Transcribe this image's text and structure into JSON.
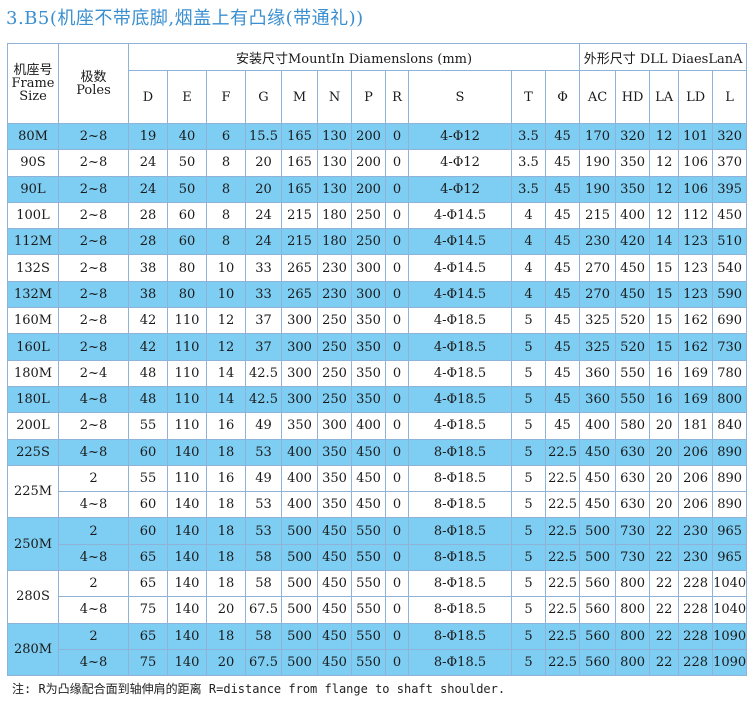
{
  "title": "3.B5(机座不带底脚,烟盖上有凸缘(带通礼))",
  "header": {
    "frame_cn": "机座号",
    "frame_en": "Frame",
    "frame_en2": "Size",
    "poles_cn": "极数",
    "poles_en": "Poles",
    "mount_group": "安装尺寸MountIn Diamenslons (mm)",
    "outline_group": "外形尺寸 DLL DiaesLanA",
    "columns": [
      "D",
      "E",
      "F",
      "G",
      "M",
      "N",
      "P",
      "R",
      "S",
      "T",
      "Φ",
      "AC",
      "HD",
      "LA",
      "LD",
      "L"
    ]
  },
  "rows": [
    {
      "frame": "80M",
      "poles": "2~8",
      "cells": [
        "19",
        "40",
        "6",
        "15.5",
        "165",
        "130",
        "200",
        "0",
        "4-Φ12",
        "3.5",
        "45",
        "170",
        "320",
        "12",
        "101",
        "320"
      ]
    },
    {
      "frame": "90S",
      "poles": "2~8",
      "cells": [
        "24",
        "50",
        "8",
        "20",
        "165",
        "130",
        "200",
        "0",
        "4-Φ12",
        "3.5",
        "45",
        "190",
        "350",
        "12",
        "106",
        "370"
      ]
    },
    {
      "frame": "90L",
      "poles": "2~8",
      "cells": [
        "24",
        "50",
        "8",
        "20",
        "165",
        "130",
        "200",
        "0",
        "4-Φ12",
        "3.5",
        "45",
        "190",
        "350",
        "12",
        "106",
        "395"
      ]
    },
    {
      "frame": "100L",
      "poles": "2~8",
      "cells": [
        "28",
        "60",
        "8",
        "24",
        "215",
        "180",
        "250",
        "0",
        "4-Φ14.5",
        "4",
        "45",
        "215",
        "400",
        "12",
        "112",
        "450"
      ]
    },
    {
      "frame": "112M",
      "poles": "2~8",
      "cells": [
        "28",
        "60",
        "8",
        "24",
        "215",
        "180",
        "250",
        "0",
        "4-Φ14.5",
        "4",
        "45",
        "230",
        "420",
        "14",
        "123",
        "510"
      ]
    },
    {
      "frame": "132S",
      "poles": "2~8",
      "cells": [
        "38",
        "80",
        "10",
        "33",
        "265",
        "230",
        "300",
        "0",
        "4-Φ14.5",
        "4",
        "45",
        "270",
        "450",
        "15",
        "123",
        "540"
      ]
    },
    {
      "frame": "132M",
      "poles": "2~8",
      "cells": [
        "38",
        "80",
        "10",
        "33",
        "265",
        "230",
        "300",
        "0",
        "4-Φ14.5",
        "4",
        "45",
        "270",
        "450",
        "15",
        "123",
        "590"
      ]
    },
    {
      "frame": "160M",
      "poles": "2~8",
      "cells": [
        "42",
        "110",
        "12",
        "37",
        "300",
        "250",
        "350",
        "0",
        "4-Φ18.5",
        "5",
        "45",
        "325",
        "520",
        "15",
        "162",
        "690"
      ]
    },
    {
      "frame": "160L",
      "poles": "2~8",
      "cells": [
        "42",
        "110",
        "12",
        "37",
        "300",
        "250",
        "350",
        "0",
        "4-Φ18.5",
        "5",
        "45",
        "325",
        "520",
        "15",
        "162",
        "730"
      ]
    },
    {
      "frame": "180M",
      "poles": "2~4",
      "cells": [
        "48",
        "110",
        "14",
        "42.5",
        "300",
        "250",
        "350",
        "0",
        "4-Φ18.5",
        "5",
        "45",
        "360",
        "550",
        "16",
        "169",
        "780"
      ]
    },
    {
      "frame": "180L",
      "poles": "4~8",
      "cells": [
        "48",
        "110",
        "14",
        "42.5",
        "300",
        "250",
        "350",
        "0",
        "4-Φ18.5",
        "5",
        "45",
        "360",
        "550",
        "16",
        "169",
        "800"
      ]
    },
    {
      "frame": "200L",
      "poles": "2~8",
      "cells": [
        "55",
        "110",
        "16",
        "49",
        "350",
        "300",
        "400",
        "0",
        "4-Φ18.5",
        "5",
        "45",
        "400",
        "580",
        "20",
        "181",
        "840"
      ]
    },
    {
      "frame": "225S",
      "poles": "4~8",
      "cells": [
        "60",
        "140",
        "18",
        "53",
        "400",
        "350",
        "450",
        "0",
        "8-Φ18.5",
        "5",
        "22.5",
        "450",
        "630",
        "20",
        "206",
        "890"
      ]
    },
    {
      "frame": "225M",
      "poles": "2",
      "cells": [
        "55",
        "110",
        "16",
        "49",
        "400",
        "350",
        "450",
        "0",
        "8-Φ18.5",
        "5",
        "22.5",
        "450",
        "630",
        "20",
        "206",
        "890"
      ]
    },
    {
      "frame": "",
      "poles": "4~8",
      "cells": [
        "60",
        "140",
        "18",
        "53",
        "400",
        "350",
        "450",
        "0",
        "8-Φ18.5",
        "5",
        "22.5",
        "450",
        "630",
        "20",
        "206",
        "890"
      ]
    },
    {
      "frame": "250M",
      "poles": "2",
      "cells": [
        "60",
        "140",
        "18",
        "53",
        "500",
        "450",
        "550",
        "0",
        "8-Φ18.5",
        "5",
        "22.5",
        "500",
        "730",
        "22",
        "230",
        "965"
      ]
    },
    {
      "frame": "",
      "poles": "4~8",
      "cells": [
        "65",
        "140",
        "18",
        "58",
        "500",
        "450",
        "550",
        "0",
        "8-Φ18.5",
        "5",
        "22.5",
        "500",
        "730",
        "22",
        "230",
        "965"
      ]
    },
    {
      "frame": "280S",
      "poles": "2",
      "cells": [
        "65",
        "140",
        "18",
        "58",
        "500",
        "450",
        "550",
        "0",
        "8-Φ18.5",
        "5",
        "22.5",
        "560",
        "800",
        "22",
        "228",
        "1040"
      ]
    },
    {
      "frame": "",
      "poles": "4~8",
      "cells": [
        "75",
        "140",
        "20",
        "67.5",
        "500",
        "450",
        "550",
        "0",
        "8-Φ18.5",
        "5",
        "22.5",
        "560",
        "800",
        "22",
        "228",
        "1040"
      ]
    },
    {
      "frame": "280M",
      "poles": "2",
      "cells": [
        "65",
        "140",
        "18",
        "58",
        "500",
        "450",
        "550",
        "0",
        "8-Φ18.5",
        "5",
        "22.5",
        "560",
        "800",
        "22",
        "228",
        "1090"
      ]
    },
    {
      "frame": "",
      "poles": "4~8",
      "cells": [
        "75",
        "140",
        "20",
        "67.5",
        "500",
        "450",
        "550",
        "0",
        "8-Φ18.5",
        "5",
        "22.5",
        "560",
        "800",
        "22",
        "228",
        "1090"
      ]
    }
  ],
  "note": "注: R为凸缘配合面到轴伸肩的距离 R=distance from flange to shaft shoulder."
}
